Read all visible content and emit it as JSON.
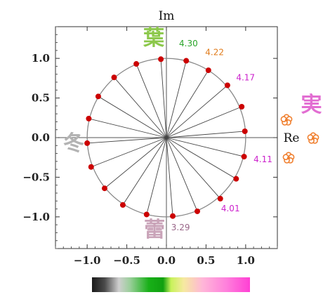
{
  "chart_data": {
    "type": "scatter",
    "title": "",
    "xlabel": "Re",
    "ylabel": "Im",
    "xlim": [
      -1.4,
      1.4
    ],
    "ylim": [
      -1.4,
      1.4
    ],
    "xticks": [
      "−1.0",
      "−0.5",
      "0.0",
      "0.5",
      "1.0"
    ],
    "yticks": [
      "1.0",
      "0.5",
      "0.0",
      "−0.5",
      "−1.0"
    ],
    "unit_circle": true,
    "spokes_from_origin": true,
    "points": [
      {
        "x": -0.07,
        "y": 0.99
      },
      {
        "x": 0.25,
        "y": 0.97
      },
      {
        "x": 0.53,
        "y": 0.85
      },
      {
        "x": 0.77,
        "y": 0.66
      },
      {
        "x": 0.95,
        "y": 0.39
      },
      {
        "x": 0.99,
        "y": 0.08
      },
      {
        "x": 0.98,
        "y": -0.24
      },
      {
        "x": 0.88,
        "y": -0.52
      },
      {
        "x": 0.68,
        "y": -0.77
      },
      {
        "x": 0.39,
        "y": -0.93
      },
      {
        "x": 0.08,
        "y": -0.99
      },
      {
        "x": -0.25,
        "y": -0.97
      },
      {
        "x": -0.55,
        "y": -0.85
      },
      {
        "x": -0.78,
        "y": -0.64
      },
      {
        "x": -0.95,
        "y": -0.37
      },
      {
        "x": -1.0,
        "y": -0.07
      },
      {
        "x": -0.98,
        "y": 0.24
      },
      {
        "x": -0.86,
        "y": 0.52
      },
      {
        "x": -0.66,
        "y": 0.76
      },
      {
        "x": -0.38,
        "y": 0.93
      }
    ],
    "annotations": [
      {
        "text": "4.30",
        "x": 0.16,
        "y": 1.15,
        "color": "#2aa52a"
      },
      {
        "text": "4.22",
        "x": 0.49,
        "y": 1.04,
        "color": "#e07b1a"
      },
      {
        "text": "4.17",
        "x": 0.88,
        "y": 0.72,
        "color": "#cc22cc"
      },
      {
        "text": "4.11",
        "x": 1.1,
        "y": -0.31,
        "color": "#cc22cc"
      },
      {
        "text": "4.01",
        "x": 0.69,
        "y": -0.93,
        "color": "#cc22cc"
      },
      {
        "text": "3.29",
        "x": 0.06,
        "y": -1.17,
        "color": "#996688"
      }
    ],
    "season_marks": [
      {
        "text": "葉",
        "x": -0.16,
        "y": 1.17,
        "color": "#8cc84b"
      },
      {
        "text": "冬",
        "x": -1.17,
        "y": -0.16,
        "color": "#b3b3b3"
      },
      {
        "text": "蕾",
        "x": -0.15,
        "y": -1.25,
        "color": "#c9a3b8"
      },
      {
        "text": "実",
        "x": 1.83,
        "y": 0.33,
        "color": "#e26ed2"
      }
    ],
    "colors": {
      "point": "#cc0000",
      "circle": "#888888",
      "spoke": "#444444",
      "flower": "#f08030"
    },
    "colorbar": [
      "#2c2c2c",
      "#9e9e9e",
      "#18b018",
      "#c8f25a",
      "#ffb6d8",
      "#ff4fd8"
    ]
  }
}
